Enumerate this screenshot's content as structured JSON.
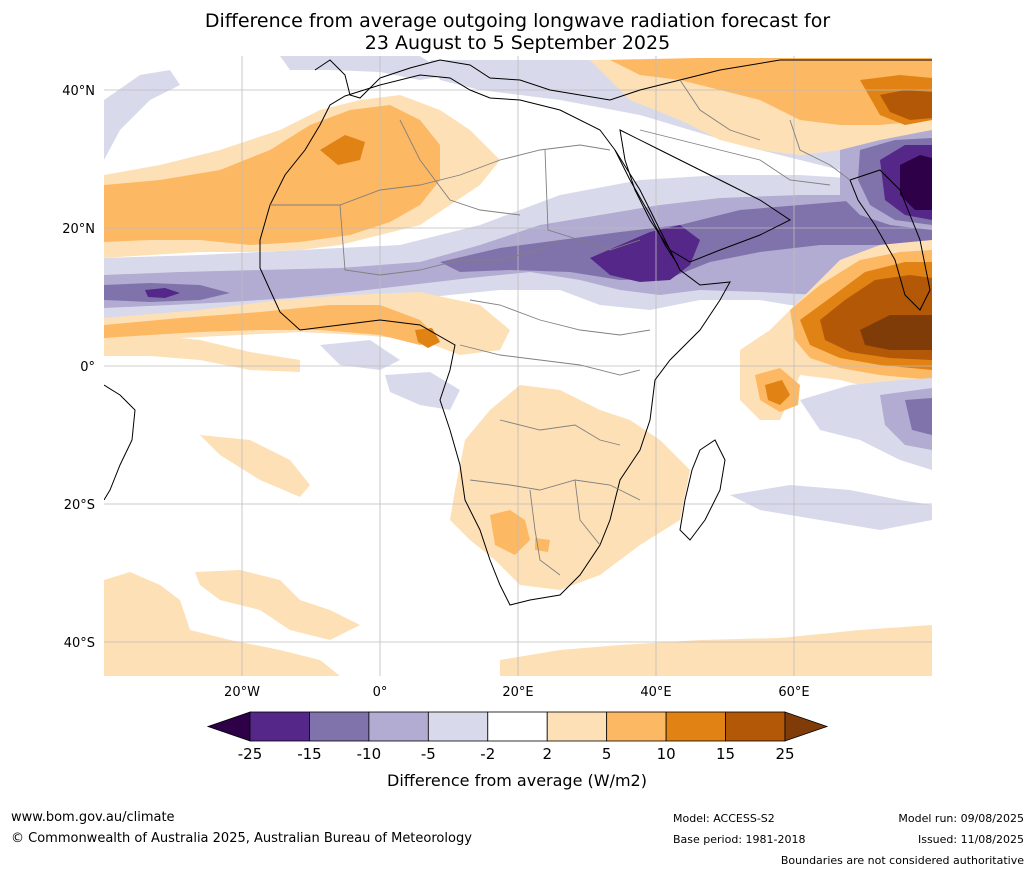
{
  "title": {
    "line1": "Difference from average outgoing longwave radiation forecast for",
    "line2": "23 August to 5 September 2025"
  },
  "axes": {
    "lat_labels": [
      "40°N",
      "20°N",
      "0°",
      "20°S",
      "40°S"
    ],
    "lon_labels": [
      "20°W",
      "0°",
      "20°E",
      "40°E",
      "60°E"
    ]
  },
  "colorbar": {
    "labels": [
      "-25",
      "-15",
      "-10",
      "-5",
      "-2",
      "2",
      "5",
      "10",
      "15",
      "25"
    ],
    "colors": [
      "#2d0048",
      "#542788",
      "#8073ac",
      "#b2abd2",
      "#d8daeb",
      "#ffffff",
      "#fee0b6",
      "#fdb863",
      "#e08214",
      "#b35806",
      "#7f3b08"
    ],
    "title": "Difference from average (W/m2)"
  },
  "footer": {
    "website": "www.bom.gov.au/climate",
    "copyright": "© Commonwealth of Australia 2025, Australian Bureau of Meteorology",
    "model": "Model: ACCESS-S2",
    "base_period": "Base period: 1981-2018",
    "model_run": "Model run: 09/08/2025",
    "issued": "Issued: 11/08/2025",
    "boundaries_note": "Boundaries are not considered authoritative"
  }
}
